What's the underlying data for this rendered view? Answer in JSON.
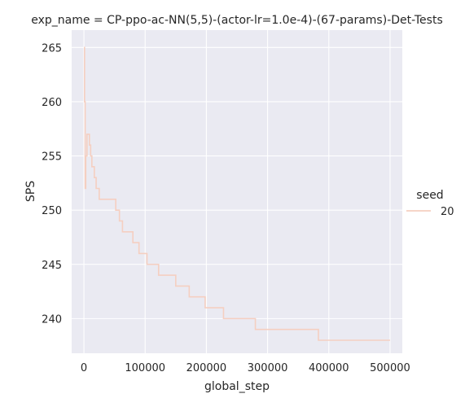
{
  "chart_data": {
    "type": "line",
    "title": "exp_name = CP-ppo-ac-NN(5,5)-(actor-lr=1.0e-4)-(67-params)-Det-Tests",
    "xlabel": "global_step",
    "ylabel": "SPS",
    "xlim": [
      -20000,
      520000
    ],
    "ylim": [
      236.8,
      266.6
    ],
    "xticks": [
      0,
      100000,
      200000,
      300000,
      400000,
      500000
    ],
    "yticks": [
      240,
      245,
      250,
      255,
      260,
      265
    ],
    "grid": true,
    "legend": {
      "title": "seed",
      "placement": "right"
    },
    "colors": {
      "background": "#eaeaf2",
      "grid": "#ffffff",
      "series": "#f5cfc1"
    },
    "series": [
      {
        "name": "20",
        "step": true,
        "x": [
          0,
          1000,
          2000,
          3000,
          5000,
          7000,
          9000,
          11000,
          13000,
          15000,
          17000,
          20000,
          25000,
          52000,
          58000,
          63000,
          70000,
          80000,
          90000,
          103000,
          122000,
          150000,
          172000,
          198000,
          228000,
          280000,
          383000,
          500000
        ],
        "y": [
          265,
          260,
          252,
          255,
          257,
          257,
          256,
          255,
          254,
          254,
          253,
          252,
          251,
          250,
          249,
          248,
          248,
          247,
          246,
          245,
          244,
          243,
          242,
          241,
          240,
          239,
          238,
          238
        ]
      }
    ]
  }
}
